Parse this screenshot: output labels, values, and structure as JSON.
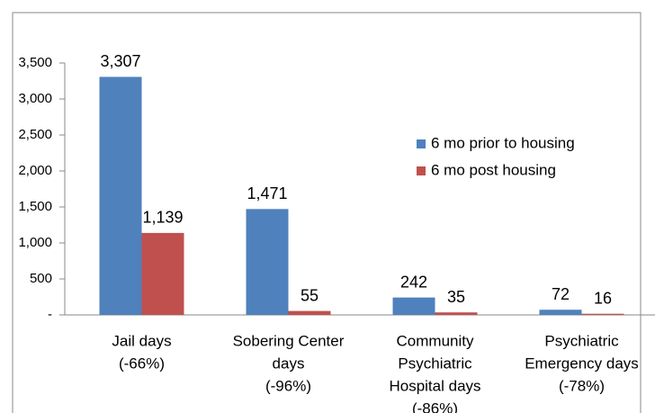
{
  "chart_data": {
    "type": "bar",
    "categories": [
      [
        "Jail days",
        "(-66%)"
      ],
      [
        "Sobering Center",
        "days",
        "(-96%)"
      ],
      [
        "Community",
        "Psychiatric",
        "Hospital days",
        "(-86%)"
      ],
      [
        "Psychiatric",
        "Emergency days",
        "(-78%)"
      ]
    ],
    "series": [
      {
        "name": "6 mo prior to housing",
        "color": "#4f81bd",
        "values": [
          3307,
          1471,
          242,
          72
        ],
        "value_labels": [
          "3,307",
          "1,471",
          "242",
          "72"
        ]
      },
      {
        "name": "6 mo post housing",
        "color": "#c0504d",
        "values": [
          1139,
          55,
          35,
          16
        ],
        "value_labels": [
          "1,139",
          "55",
          "35",
          "16"
        ]
      }
    ],
    "ylim": [
      0,
      3500
    ],
    "yticks": [
      {
        "value": 0,
        "label": "-"
      },
      500,
      {
        "value": 1000,
        "label": "1,000"
      },
      {
        "value": 1500,
        "label": "1,500"
      },
      {
        "value": 2000,
        "label": "2,000"
      },
      {
        "value": 2500,
        "label": "2,500"
      },
      {
        "value": 3000,
        "label": "3,000"
      },
      {
        "value": 3500,
        "label": "3,500"
      }
    ],
    "grid": false
  }
}
